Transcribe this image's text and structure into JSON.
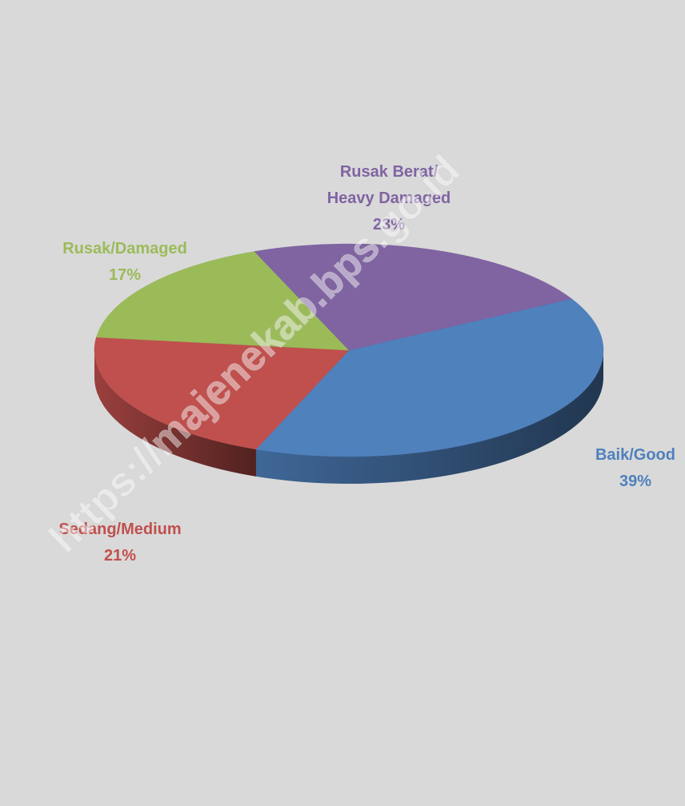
{
  "chart_data": {
    "type": "pie",
    "style": "3d",
    "categories": [
      "Baik/Good",
      "Sedang/Medium",
      "Rusak/Damaged",
      "Rusak Berat/ Heavy Damaged"
    ],
    "values": [
      39,
      21,
      17,
      23
    ],
    "unit": "%",
    "colors": [
      "#4f81bd",
      "#c0504d",
      "#9bbb59",
      "#8064a2"
    ],
    "labels": [
      {
        "lines": [
          "Baik/Good",
          "39%"
        ]
      },
      {
        "lines": [
          "Sedang/Medium",
          "21%"
        ]
      },
      {
        "lines": [
          "Rusak/Damaged",
          "17%"
        ]
      },
      {
        "lines": [
          "Rusak Berat/",
          "Heavy Damaged",
          "23%"
        ]
      }
    ],
    "legend": "none"
  },
  "watermark": "https://majenekab.bps.go.id",
  "background_color": "#d9d9d9"
}
